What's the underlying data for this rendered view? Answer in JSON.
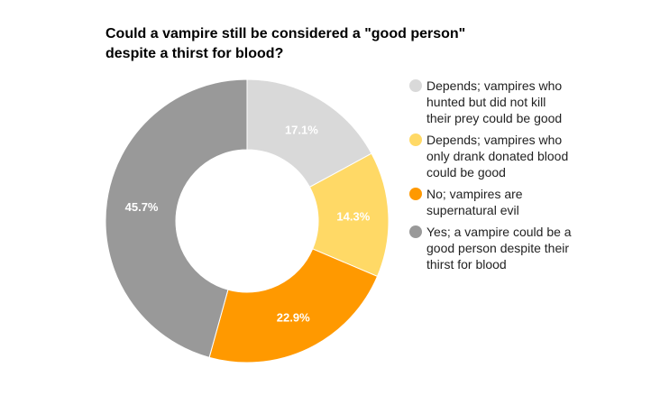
{
  "chart_data": {
    "type": "pie",
    "donut": true,
    "title": "Could a vampire still be considered a \"good person\" despite a thirst for blood?",
    "legend_position": "right",
    "slices": [
      {
        "label": "Depends; vampires who hunted but did not kill their prey could be good",
        "value": 17.1,
        "value_label": "17.1%",
        "color": "#d9d9d9"
      },
      {
        "label": "Depends; vampires who only drank donated blood could be good",
        "value": 14.3,
        "value_label": "14.3%",
        "color": "#ffd966"
      },
      {
        "label": "No; vampires are supernatural evil",
        "value": 22.9,
        "value_label": "22.9%",
        "color": "#ff9900"
      },
      {
        "label": "Yes; a vampire could be a good person despite their thirst for blood",
        "value": 45.7,
        "value_label": "45.7%",
        "color": "#999999"
      }
    ]
  }
}
